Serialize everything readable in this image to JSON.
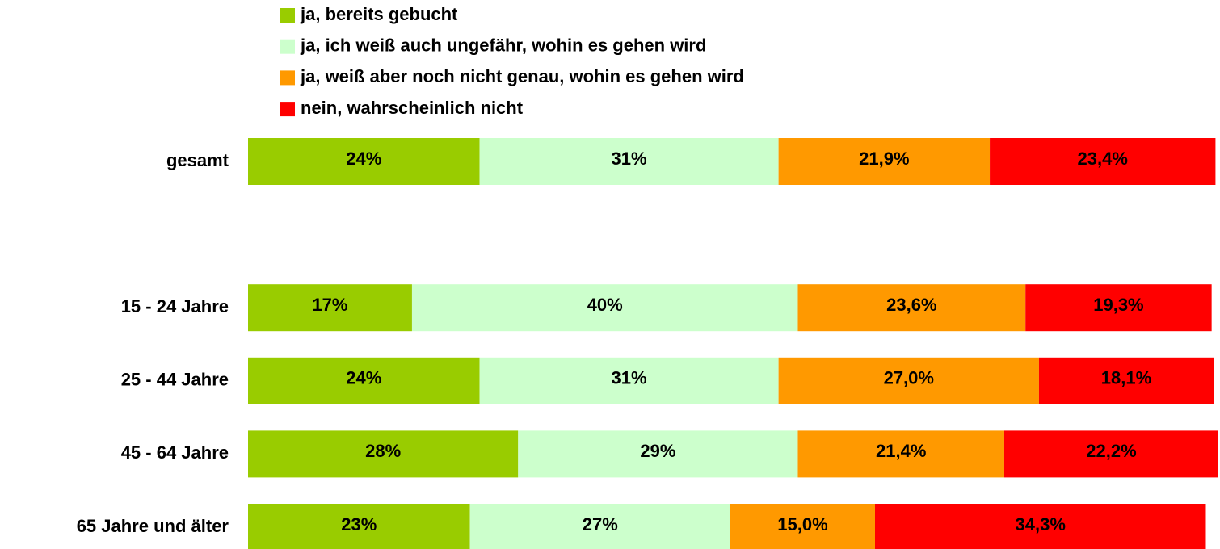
{
  "chart_data": {
    "type": "stacked_barh",
    "categories": [
      "gesamt",
      null,
      "15 - 24 Jahre",
      "25 - 44 Jahre",
      "45 - 64 Jahre",
      "65 Jahre und älter"
    ],
    "series": [
      {
        "name": "ja, bereits gebucht",
        "color": "#99cc00",
        "values": [
          24,
          null,
          17,
          24,
          28,
          23
        ],
        "value_labels": [
          "24%",
          null,
          "17%",
          "24%",
          "28%",
          "23%"
        ]
      },
      {
        "name": "ja, ich weiß auch ungefähr, wohin es gehen wird",
        "color": "#ccffcc",
        "values": [
          31,
          null,
          40,
          31,
          29,
          27
        ],
        "value_labels": [
          "31%",
          null,
          "40%",
          "31%",
          "29%",
          "27%"
        ]
      },
      {
        "name": "ja, weiß aber noch nicht genau, wohin es gehen wird",
        "color": "#ff9900",
        "values": [
          21.9,
          null,
          23.6,
          27.0,
          21.4,
          15.0
        ],
        "value_labels": [
          "21,9%",
          null,
          "23,6%",
          "27,0%",
          "21,4%",
          "15,0%"
        ]
      },
      {
        "name": "nein, wahrscheinlich nicht",
        "color": "#ff0000",
        "values": [
          23.4,
          null,
          19.3,
          18.1,
          22.2,
          34.3
        ],
        "value_labels": [
          "23,4%",
          null,
          "19,3%",
          "18,1%",
          "22,2%",
          "34,3%"
        ]
      }
    ],
    "xlim": [
      0,
      100.6
    ],
    "legend": "top"
  }
}
